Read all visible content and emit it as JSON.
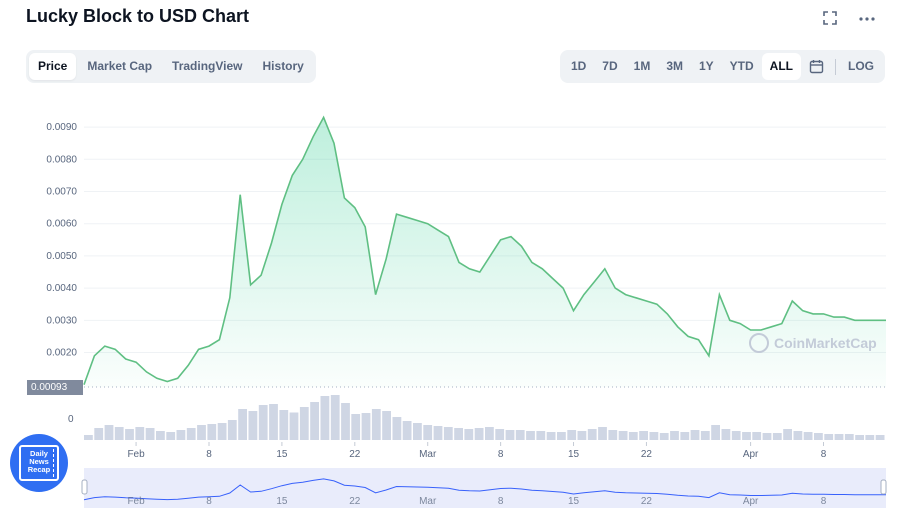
{
  "header": {
    "title": "Lucky Block to USD Chart"
  },
  "top_icons": [
    "fullscreen-icon",
    "more-icon"
  ],
  "tabs": [
    {
      "label": "Price",
      "active": true
    },
    {
      "label": "Market Cap",
      "active": false
    },
    {
      "label": "TradingView",
      "active": false
    },
    {
      "label": "History",
      "active": false
    }
  ],
  "ranges": [
    {
      "label": "1D",
      "active": false
    },
    {
      "label": "7D",
      "active": false
    },
    {
      "label": "1M",
      "active": false
    },
    {
      "label": "3M",
      "active": false
    },
    {
      "label": "1Y",
      "active": false
    },
    {
      "label": "YTD",
      "active": false
    },
    {
      "label": "ALL",
      "active": true
    }
  ],
  "log_label": "LOG",
  "watermark": "CoinMarketCap",
  "news_badge": "Daily News Recap",
  "colors": {
    "line": "#5fbf83",
    "fill": "#16c784",
    "volume": "#cfd6e4",
    "navigator": "#e9ecfb",
    "navigator_line": "#3861fb"
  },
  "chart_data": {
    "type": "line",
    "ylim": [
      0.00093,
      0.0095
    ],
    "y_ticks": [
      "0.0090",
      "0.0080",
      "0.0070",
      "0.0060",
      "0.0050",
      "0.0040",
      "0.0030",
      "0.0020"
    ],
    "y_tick_values": [
      0.009,
      0.008,
      0.007,
      0.006,
      0.005,
      0.004,
      0.003,
      0.002
    ],
    "min_label": "0.00093",
    "volume_axis_label": "0",
    "x_range": [
      "2022-01-27",
      "2022-04-14"
    ],
    "x_ticks": [
      {
        "label": "Feb",
        "date": "2022-02-01"
      },
      {
        "label": "8",
        "date": "2022-02-08"
      },
      {
        "label": "15",
        "date": "2022-02-15"
      },
      {
        "label": "22",
        "date": "2022-02-22"
      },
      {
        "label": "Mar",
        "date": "2022-03-01"
      },
      {
        "label": "8",
        "date": "2022-03-08"
      },
      {
        "label": "15",
        "date": "2022-03-15"
      },
      {
        "label": "22",
        "date": "2022-03-22"
      },
      {
        "label": "Apr",
        "date": "2022-04-01"
      },
      {
        "label": "8",
        "date": "2022-04-08"
      }
    ],
    "series": [
      {
        "x": [
          "2022-01-27",
          "2022-01-28",
          "2022-01-29",
          "2022-01-30",
          "2022-01-31",
          "2022-02-01",
          "2022-02-02",
          "2022-02-03",
          "2022-02-04",
          "2022-02-05",
          "2022-02-06",
          "2022-02-07",
          "2022-02-08",
          "2022-02-09",
          "2022-02-10",
          "2022-02-11",
          "2022-02-12",
          "2022-02-13",
          "2022-02-14",
          "2022-02-15",
          "2022-02-16",
          "2022-02-17",
          "2022-02-18",
          "2022-02-19",
          "2022-02-20",
          "2022-02-21",
          "2022-02-22",
          "2022-02-23",
          "2022-02-24",
          "2022-02-25",
          "2022-02-26",
          "2022-02-27",
          "2022-02-28",
          "2022-03-01",
          "2022-03-02",
          "2022-03-03",
          "2022-03-04",
          "2022-03-05",
          "2022-03-06",
          "2022-03-07",
          "2022-03-08",
          "2022-03-09",
          "2022-03-10",
          "2022-03-11",
          "2022-03-12",
          "2022-03-13",
          "2022-03-14",
          "2022-03-15",
          "2022-03-16",
          "2022-03-17",
          "2022-03-18",
          "2022-03-19",
          "2022-03-20",
          "2022-03-21",
          "2022-03-22",
          "2022-03-23",
          "2022-03-24",
          "2022-03-25",
          "2022-03-26",
          "2022-03-27",
          "2022-03-28",
          "2022-03-29",
          "2022-03-30",
          "2022-03-31",
          "2022-04-01",
          "2022-04-02",
          "2022-04-03",
          "2022-04-04",
          "2022-04-05",
          "2022-04-06",
          "2022-04-07",
          "2022-04-08",
          "2022-04-09",
          "2022-04-10",
          "2022-04-11",
          "2022-04-12",
          "2022-04-13",
          "2022-04-14"
        ],
        "y": [
          0.001,
          0.0019,
          0.0022,
          0.0021,
          0.0018,
          0.0017,
          0.0014,
          0.0012,
          0.0011,
          0.0012,
          0.0016,
          0.0021,
          0.0022,
          0.0024,
          0.0037,
          0.0069,
          0.0041,
          0.0044,
          0.0054,
          0.0066,
          0.0075,
          0.008,
          0.0087,
          0.0093,
          0.0085,
          0.0068,
          0.0065,
          0.0059,
          0.0038,
          0.0049,
          0.0063,
          0.0062,
          0.0061,
          0.006,
          0.0058,
          0.0056,
          0.0048,
          0.0046,
          0.0045,
          0.005,
          0.0055,
          0.0056,
          0.0053,
          0.0048,
          0.0046,
          0.0043,
          0.004,
          0.0033,
          0.0038,
          0.0042,
          0.0046,
          0.004,
          0.0038,
          0.0037,
          0.0036,
          0.0035,
          0.0032,
          0.0028,
          0.0025,
          0.0024,
          0.0019,
          0.0038,
          0.003,
          0.0029,
          0.0027,
          0.0027,
          0.0028,
          0.0029,
          0.0036,
          0.0033,
          0.0032,
          0.0032,
          0.0031,
          0.0031,
          0.003,
          0.003,
          0.003,
          0.003
        ]
      }
    ],
    "volume": [
      0.1,
      0.24,
      0.3,
      0.26,
      0.22,
      0.26,
      0.24,
      0.18,
      0.16,
      0.2,
      0.24,
      0.3,
      0.32,
      0.34,
      0.4,
      0.62,
      0.58,
      0.7,
      0.72,
      0.6,
      0.55,
      0.66,
      0.76,
      0.88,
      0.9,
      0.74,
      0.52,
      0.54,
      0.62,
      0.58,
      0.46,
      0.38,
      0.34,
      0.3,
      0.28,
      0.26,
      0.24,
      0.22,
      0.24,
      0.26,
      0.22,
      0.2,
      0.2,
      0.18,
      0.18,
      0.16,
      0.16,
      0.2,
      0.18,
      0.22,
      0.26,
      0.2,
      0.18,
      0.16,
      0.18,
      0.16,
      0.14,
      0.18,
      0.16,
      0.2,
      0.18,
      0.3,
      0.22,
      0.18,
      0.16,
      0.16,
      0.14,
      0.14,
      0.22,
      0.18,
      0.16,
      0.14,
      0.12,
      0.12,
      0.12,
      0.1,
      0.1,
      0.1
    ]
  }
}
